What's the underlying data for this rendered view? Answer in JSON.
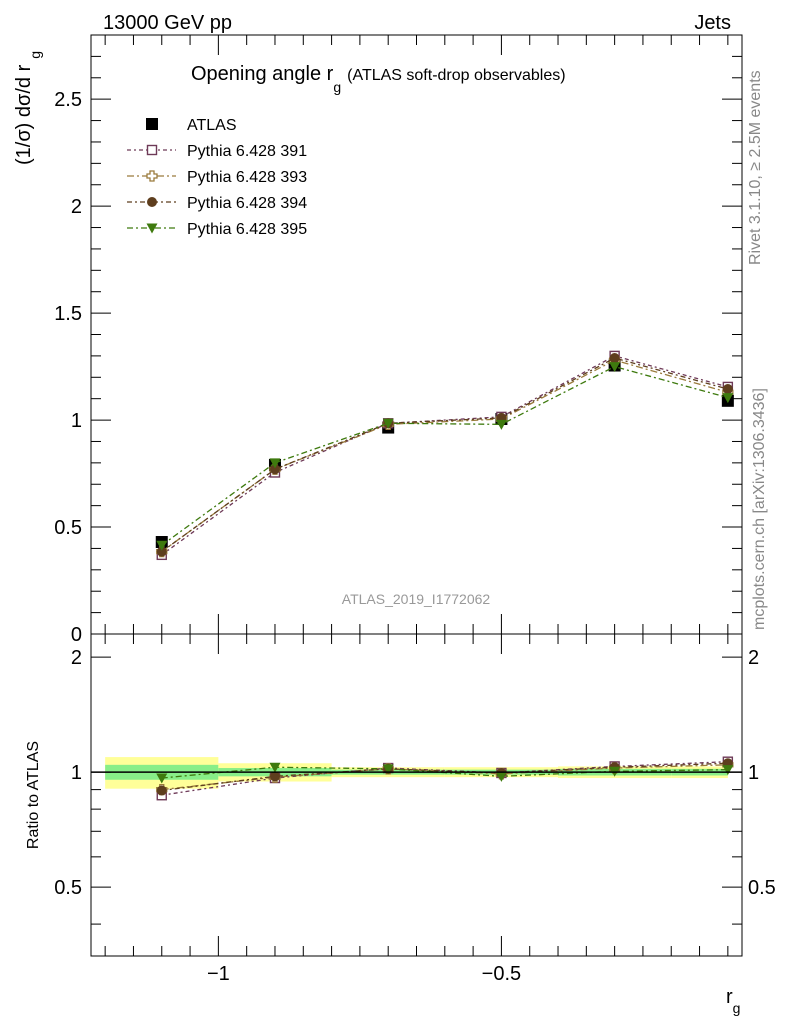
{
  "header": {
    "energy_label": "13000 GeV pp",
    "process_label": "Jets"
  },
  "side_labels": {
    "rivet": "Rivet 3.1.10, ≥ 2.5M events",
    "mcplots": "mcplots.cern.ch [arXiv:1306.3436]"
  },
  "chart_data": [
    {
      "type": "line",
      "title_main": "Opening angle r",
      "title_sub": "g",
      "title_extra": "(ATLAS soft-drop observables)",
      "ylabel_main": "(1/σ) dσ/d r",
      "ylabel_sub": "g",
      "watermark": "ATLAS_2019_I1772062",
      "xlim": [
        -1.225,
        -0.075
      ],
      "ylim": [
        0,
        2.8
      ],
      "log_scale": false,
      "y_ticks": [
        0,
        0.5,
        1,
        1.5,
        2,
        2.5
      ],
      "y_tick_labels": [
        "0",
        "0.5",
        "1",
        "1.5",
        "2",
        "2.5"
      ],
      "legend_position": "top-left",
      "x": [
        -1.1,
        -0.9,
        -0.7,
        -0.5,
        -0.3,
        -0.1
      ],
      "series": [
        {
          "name": "ATLAS",
          "color": "#000000",
          "marker": "square-filled",
          "values": [
            0.43,
            0.79,
            0.965,
            1.005,
            1.255,
            1.09
          ]
        },
        {
          "name": "Pythia 6.428 391",
          "color": "#6e3a58",
          "marker": "square-open",
          "values": [
            0.37,
            0.755,
            0.985,
            1.015,
            1.3,
            1.155
          ]
        },
        {
          "name": "Pythia 6.428 393",
          "color": "#9a7b3c",
          "marker": "cross-open",
          "values": [
            0.385,
            0.77,
            0.98,
            1.005,
            1.28,
            1.13
          ]
        },
        {
          "name": "Pythia 6.428 394",
          "color": "#5e3e1e",
          "marker": "circle-filled",
          "values": [
            0.385,
            0.77,
            0.985,
            1.01,
            1.29,
            1.145
          ]
        },
        {
          "name": "Pythia 6.428 395",
          "color": "#3e7a0e",
          "marker": "triangle-down-filled",
          "values": [
            0.415,
            0.8,
            0.985,
            0.98,
            1.25,
            1.105
          ]
        }
      ]
    },
    {
      "type": "line",
      "ylabel": "Ratio to ATLAS",
      "xlabel_main": "r",
      "xlabel_sub": "g",
      "xlim": [
        -1.225,
        -0.075
      ],
      "ylim": [
        0.33,
        2.3
      ],
      "y_ticks": [
        0.5,
        1,
        2
      ],
      "y_tick_labels": [
        "0.5",
        "1",
        "2"
      ],
      "x_ticks": [
        -1,
        -0.5
      ],
      "x_tick_labels": [
        "−1",
        "−0.5"
      ],
      "reference_line": 1,
      "bands": [
        {
          "x_low": -1.2,
          "x_high": -1.0,
          "inner": [
            0.955,
            1.045
          ],
          "outer": [
            0.905,
            1.095
          ]
        },
        {
          "x_low": -1.0,
          "x_high": -0.8,
          "inner": [
            0.975,
            1.025
          ],
          "outer": [
            0.945,
            1.055
          ]
        },
        {
          "x_low": -0.8,
          "x_high": -0.6,
          "inner": [
            0.985,
            1.015
          ],
          "outer": [
            0.97,
            1.03
          ]
        },
        {
          "x_low": -0.6,
          "x_high": -0.4,
          "inner": [
            0.985,
            1.015
          ],
          "outer": [
            0.97,
            1.03
          ]
        },
        {
          "x_low": -0.4,
          "x_high": -0.2,
          "inner": [
            0.98,
            1.02
          ],
          "outer": [
            0.965,
            1.035
          ]
        },
        {
          "x_low": -0.2,
          "x_high": -0.1,
          "inner": [
            0.98,
            1.02
          ],
          "outer": [
            0.965,
            1.035
          ]
        }
      ],
      "x": [
        -1.1,
        -0.9,
        -0.7,
        -0.5,
        -0.3,
        -0.1
      ],
      "series": [
        {
          "name": "Pythia 6.428 391",
          "color": "#6e3a58",
          "marker": "square-open",
          "values": [
            0.87,
            0.965,
            1.025,
            0.995,
            1.035,
            1.065
          ]
        },
        {
          "name": "Pythia 6.428 393",
          "color": "#9a7b3c",
          "marker": "cross-open",
          "values": [
            0.9,
            0.97,
            1.02,
            0.99,
            1.025,
            1.045
          ]
        },
        {
          "name": "Pythia 6.428 394",
          "color": "#5e3e1e",
          "marker": "circle-filled",
          "values": [
            0.895,
            0.975,
            1.02,
            0.995,
            1.03,
            1.055
          ]
        },
        {
          "name": "Pythia 6.428 395",
          "color": "#3e7a0e",
          "marker": "triangle-down-filled",
          "values": [
            0.965,
            1.03,
            1.02,
            0.975,
            1.005,
            1.015
          ]
        }
      ]
    }
  ]
}
